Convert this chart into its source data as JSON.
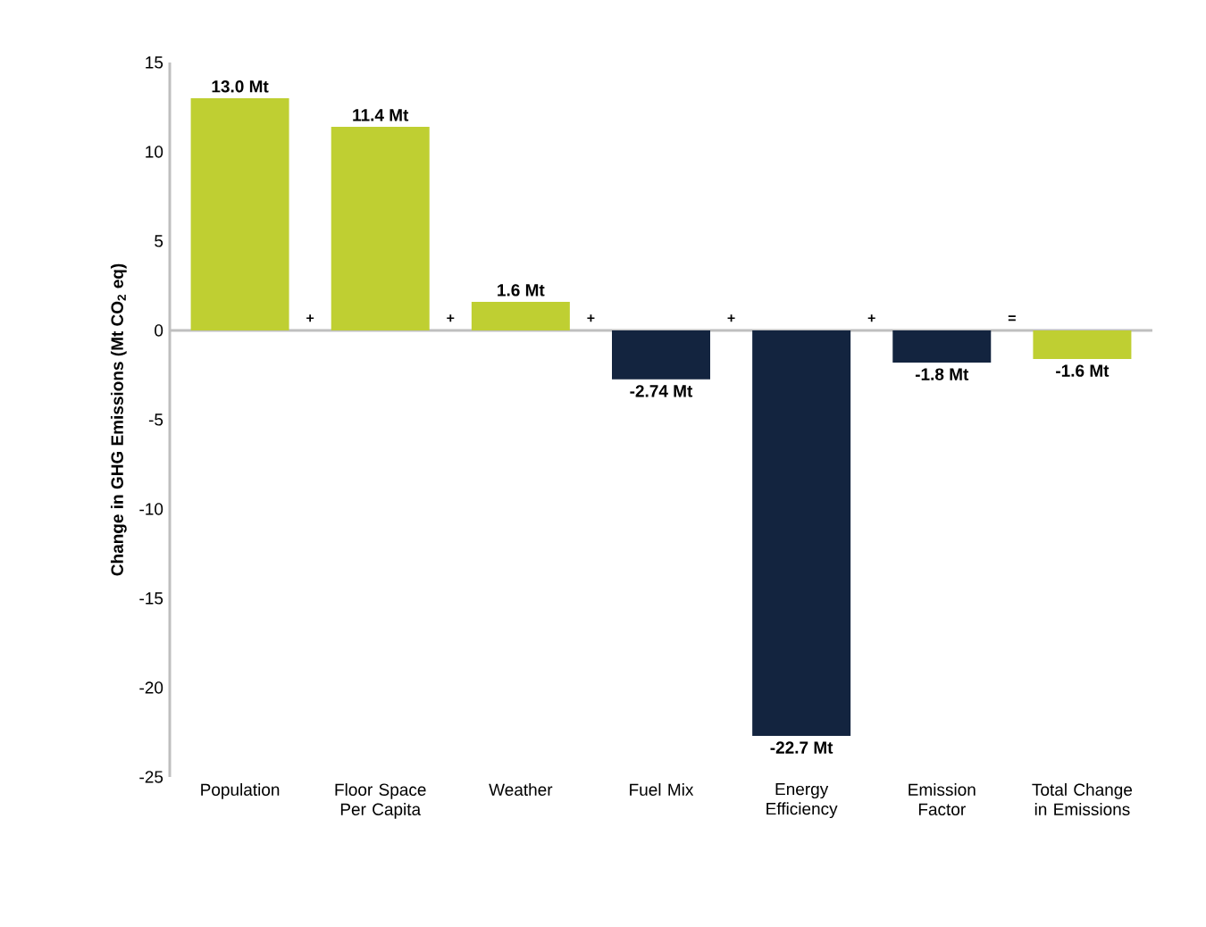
{
  "chart_data": {
    "type": "bar",
    "ylabel": "Change in GHG Emissions (Mt CO$_{2}$ eq)",
    "categories": [
      "Population",
      "Floor Space Per Capita",
      "Weather",
      "Fuel Mix",
      "Energy Efficiency",
      "Emission Factor",
      "Total Change in Emissions"
    ],
    "values": [
      13.0,
      11.4,
      1.6,
      -2.74,
      -22.7,
      -1.8,
      -1.6
    ],
    "colors": [
      "#bfcf32",
      "#bfcf32",
      "#bfcf32",
      "#13243f",
      "#13243f",
      "#13243f",
      "#bfcf32"
    ],
    "value_labels": [
      "13.0 Mt",
      "11.4 Mt",
      "1.6 Mt",
      "-2.74 Mt",
      "-22.7 Mt",
      "-1.8 Mt",
      "-1.6 Mt"
    ],
    "annotations": [
      "+",
      "+",
      "+",
      "+",
      "+",
      "="
    ],
    "ylim": [
      -25,
      15
    ],
    "yticks": [
      -25,
      -20,
      -15,
      -10,
      -5,
      0,
      5,
      10,
      15
    ]
  }
}
